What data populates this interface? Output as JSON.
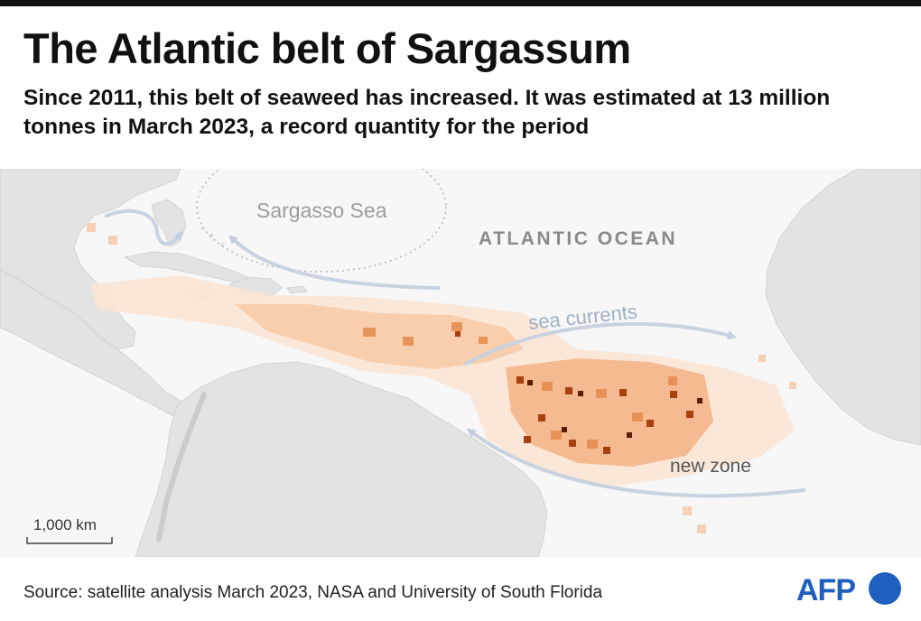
{
  "header": {
    "title": "The Atlantic belt of Sargassum",
    "subtitle": "Since 2011, this belt of seaweed has increased. It was estimated at 13 million tonnes in March 2023, a record quantity for the period"
  },
  "map": {
    "labels": {
      "sargasso_sea": "Sargasso Sea",
      "atlantic_ocean": "ATLANTIC OCEAN",
      "sea_currents": "sea currents",
      "new_zone": "new zone"
    },
    "scale_bar": "1,000 km",
    "colors": {
      "land": "#e4e4e4",
      "ocean": "#f7f7f7",
      "sargassum_light": "#fbe3d2",
      "sargassum_mid": "#f2b48a",
      "sargassum_dark": "#b4460f",
      "sargassum_darkest": "#5a1d04",
      "current_arrow": "#c8d2e0"
    }
  },
  "footer": {
    "source": "Source: satellite analysis March 2023, NASA and University of South Florida",
    "logo_text": "AFP",
    "logo_color": "#1f5fbf"
  }
}
